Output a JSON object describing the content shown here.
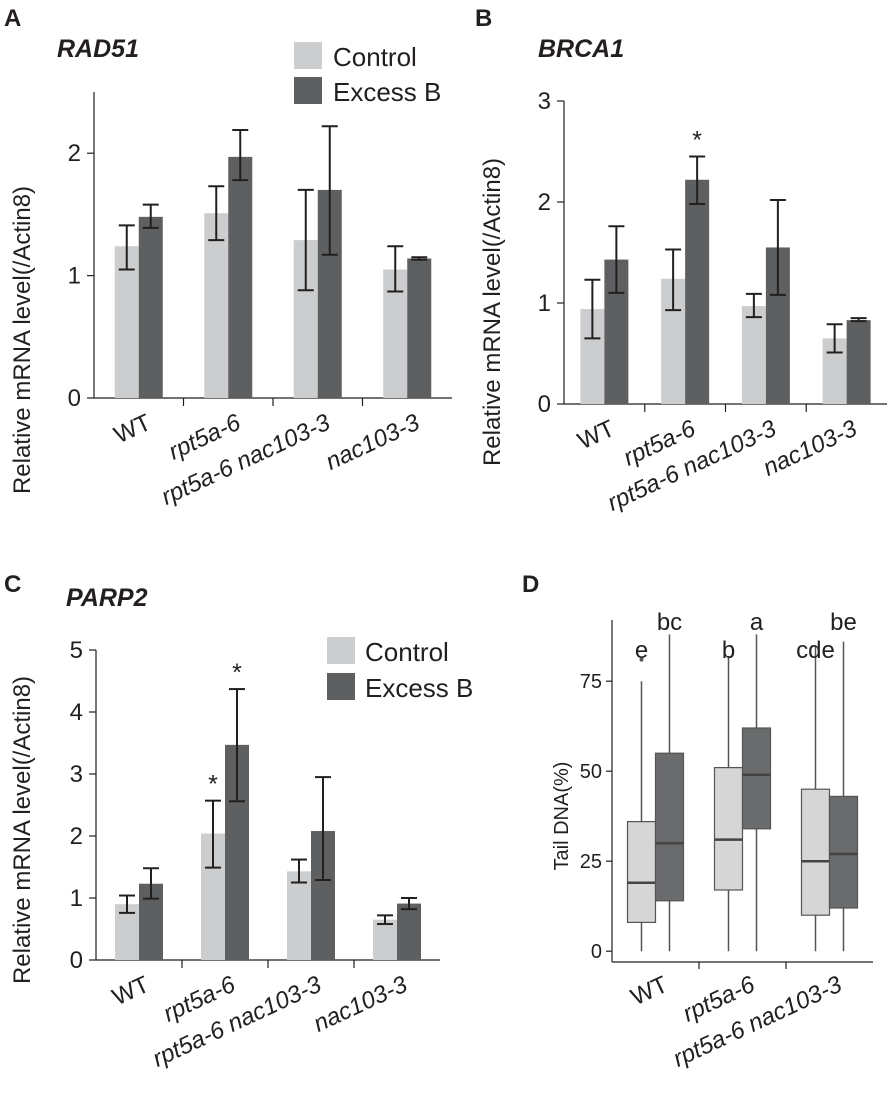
{
  "figure": {
    "panel_labels": [
      "A",
      "B",
      "C",
      "D"
    ]
  },
  "legend": {
    "control": "Control",
    "excess": "Excess B"
  },
  "colors": {
    "control": "#cccdce",
    "excess": "#5e5f61",
    "axis": "#231f20",
    "box_control": "#d6d6d7",
    "box_excess": "#6a6b6d"
  },
  "chart_data": [
    {
      "panel": "A",
      "type": "bar",
      "title": "RAD51",
      "ylabel": "Relative mRNA level(/Actin8)",
      "xlabel": "",
      "ylim": [
        0,
        2.5
      ],
      "yticks": [
        0,
        1,
        2
      ],
      "show_legend": true,
      "categories": [
        {
          "label": "WT",
          "italic": false
        },
        {
          "label": "rpt5a-6",
          "italic": true
        },
        {
          "label": "rpt5a-6 nac103-3",
          "italic": true
        },
        {
          "label": "nac103-3",
          "italic": true
        }
      ],
      "series": [
        {
          "name": "Control",
          "values": [
            1.24,
            1.51,
            1.29,
            1.05
          ],
          "err_low": [
            1.05,
            1.29,
            0.88,
            0.87
          ],
          "err_high": [
            1.41,
            1.73,
            1.7,
            1.24
          ],
          "sig": [
            "",
            "",
            "",
            ""
          ]
        },
        {
          "name": "Excess B",
          "values": [
            1.48,
            1.97,
            1.7,
            1.14
          ],
          "err_low": [
            1.39,
            1.78,
            1.17,
            1.13
          ],
          "err_high": [
            1.58,
            2.19,
            2.22,
            1.15
          ],
          "sig": [
            "",
            "",
            "",
            ""
          ]
        }
      ]
    },
    {
      "panel": "B",
      "type": "bar",
      "title": "BRCA1",
      "ylabel": "Relative mRNA level(/Actin8)",
      "xlabel": "",
      "ylim": [
        0,
        3
      ],
      "yticks": [
        0,
        1,
        2,
        3
      ],
      "show_legend": false,
      "categories": [
        {
          "label": "WT",
          "italic": false
        },
        {
          "label": "rpt5a-6",
          "italic": true
        },
        {
          "label": "rpt5a-6 nac103-3",
          "italic": true
        },
        {
          "label": "nac103-3",
          "italic": true
        }
      ],
      "series": [
        {
          "name": "Control",
          "values": [
            0.94,
            1.24,
            0.97,
            0.65
          ],
          "err_low": [
            0.65,
            0.93,
            0.86,
            0.51
          ],
          "err_high": [
            1.23,
            1.53,
            1.09,
            0.79
          ],
          "sig": [
            "",
            "",
            "",
            ""
          ]
        },
        {
          "name": "Excess B",
          "values": [
            1.43,
            2.22,
            1.55,
            0.83
          ],
          "err_low": [
            1.1,
            1.98,
            1.08,
            0.82
          ],
          "err_high": [
            1.76,
            2.45,
            2.02,
            0.85
          ],
          "sig": [
            "",
            "*",
            "",
            ""
          ]
        }
      ]
    },
    {
      "panel": "C",
      "type": "bar",
      "title": "PARP2",
      "ylabel": "Relative mRNA level(/Actin8)",
      "xlabel": "",
      "ylim": [
        0,
        5
      ],
      "yticks": [
        0,
        1,
        2,
        3,
        4,
        5
      ],
      "show_legend": true,
      "categories": [
        {
          "label": "WT",
          "italic": false
        },
        {
          "label": "rpt5a-6",
          "italic": true
        },
        {
          "label": "rpt5a-6 nac103-3",
          "italic": true
        },
        {
          "label": "nac103-3",
          "italic": true
        }
      ],
      "series": [
        {
          "name": "Control",
          "values": [
            0.9,
            2.04,
            1.43,
            0.65
          ],
          "err_low": [
            0.76,
            1.49,
            1.25,
            0.58
          ],
          "err_high": [
            1.04,
            2.57,
            1.62,
            0.72
          ],
          "sig": [
            "",
            "*",
            "",
            ""
          ]
        },
        {
          "name": "Excess B",
          "values": [
            1.23,
            3.47,
            2.08,
            0.91
          ],
          "err_low": [
            0.99,
            2.56,
            1.29,
            0.82
          ],
          "err_high": [
            1.48,
            4.37,
            2.95,
            1.0
          ],
          "sig": [
            "",
            "*",
            "",
            ""
          ]
        }
      ]
    },
    {
      "panel": "D",
      "type": "box",
      "title": "",
      "ylabel": "Tail DNA(%)",
      "xlabel": "",
      "ylim": [
        -3,
        92
      ],
      "yticks": [
        0,
        25,
        50,
        75
      ],
      "categories": [
        {
          "label": "WT",
          "italic": false
        },
        {
          "label": "rpt5a-6",
          "italic": true
        },
        {
          "label": "rpt5a-6 nac103-3",
          "italic": true
        }
      ],
      "boxes": [
        {
          "category": "WT",
          "series": "Control",
          "whisker_low": 0,
          "q1": 8,
          "median": 19,
          "q3": 36,
          "whisker_high": 75,
          "outliers": [
            81
          ],
          "letter": "e"
        },
        {
          "category": "WT",
          "series": "Excess B",
          "whisker_low": 0,
          "q1": 14,
          "median": 30,
          "q3": 55,
          "whisker_high": 88,
          "outliers": [],
          "letter": "bc"
        },
        {
          "category": "rpt5a-6",
          "series": "Control",
          "whisker_low": 0,
          "q1": 17,
          "median": 31,
          "q3": 51,
          "whisker_high": 82,
          "outliers": [],
          "letter": "b"
        },
        {
          "category": "rpt5a-6",
          "series": "Excess B",
          "whisker_low": 0,
          "q1": 34,
          "median": 49,
          "q3": 62,
          "whisker_high": 88,
          "outliers": [],
          "letter": "a"
        },
        {
          "category": "rpt5a-6 nac103-3",
          "series": "Control",
          "whisker_low": 0,
          "q1": 10,
          "median": 25,
          "q3": 45,
          "whisker_high": 85,
          "outliers": [],
          "letter": "cde"
        },
        {
          "category": "rpt5a-6 nac103-3",
          "series": "Excess B",
          "whisker_low": 0,
          "q1": 12,
          "median": 27,
          "q3": 43,
          "whisker_high": 86,
          "outliers": [],
          "letter": "be"
        }
      ]
    }
  ]
}
